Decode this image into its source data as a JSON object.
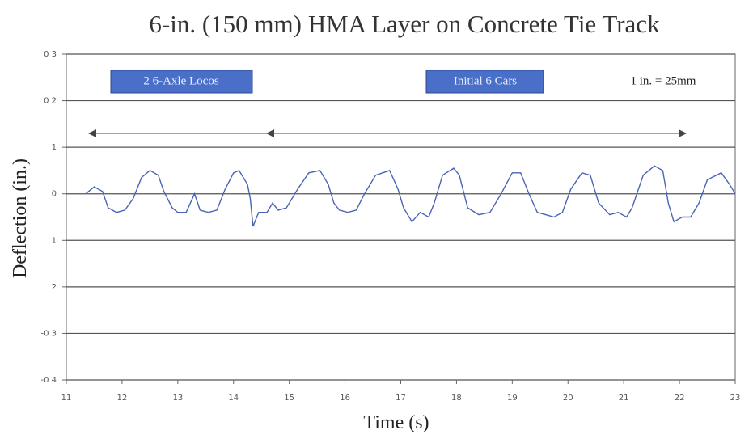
{
  "chart_data": {
    "type": "line",
    "title": "6-in. (150 mm) HMA Layer on Concrete Tie Track",
    "x_label": "Time (s)",
    "y_label": "Deflection (in.)",
    "annotations": [
      "2 6-Axle Locos",
      "Initial 6 Cars",
      "1 in. = 25mm"
    ],
    "xlim": [
      11,
      23
    ],
    "xticks": [
      11,
      12,
      13,
      14,
      15,
      16,
      17,
      18,
      19,
      20,
      21,
      22,
      23
    ],
    "ylim": [
      -0.4,
      0.3
    ],
    "yticks": [
      {
        "value": 0.3,
        "label": "0 3"
      },
      {
        "value": 0.2,
        "label": "0 2"
      },
      {
        "value": 0.1,
        "label": "1"
      },
      0,
      {
        "value": -0.1,
        "label": "1"
      },
      {
        "value": -0.2,
        "label": "2"
      },
      {
        "value": -0.3,
        "label": "-0 3"
      },
      {
        "value": -0.4,
        "label": "-0 4"
      }
    ],
    "grid": true,
    "series": [
      {
        "color": "#4a64b4",
        "x": [
          11.35,
          11.5,
          11.65,
          11.75,
          11.9,
          12.05,
          12.2,
          12.35,
          12.5,
          12.65,
          12.75,
          12.9,
          13.0,
          13.15,
          13.3,
          13.4,
          13.55,
          13.7,
          13.85,
          14.0,
          14.1,
          14.25,
          14.3,
          14.35,
          14.45,
          14.6,
          14.7,
          14.8,
          14.95,
          15.15,
          15.35,
          15.55,
          15.7,
          15.8,
          15.9,
          16.05,
          16.2,
          16.35,
          16.55,
          16.8,
          16.95,
          17.05,
          17.2,
          17.35,
          17.5,
          17.6,
          17.75,
          17.95,
          18.05,
          18.2,
          18.4,
          18.6,
          18.8,
          19.0,
          19.15,
          19.3,
          19.45,
          19.6,
          19.75,
          19.9,
          20.05,
          20.25,
          20.4,
          20.55,
          20.75,
          20.9,
          21.05,
          21.15,
          21.35,
          21.55,
          21.7,
          21.8,
          21.9,
          22.05,
          22.2,
          22.35,
          22.5,
          22.75,
          22.9,
          23.0
        ],
        "values": [
          0,
          0.015,
          0.005,
          -0.03,
          -0.04,
          -0.035,
          -0.01,
          0.035,
          0.05,
          0.04,
          0.005,
          -0.03,
          -0.04,
          -0.04,
          0.0,
          -0.035,
          -0.04,
          -0.035,
          0.01,
          0.045,
          0.05,
          0.02,
          -0.01,
          -0.07,
          -0.04,
          -0.04,
          -0.02,
          -0.035,
          -0.03,
          0.01,
          0.045,
          0.05,
          0.02,
          -0.02,
          -0.035,
          -0.04,
          -0.035,
          0.0,
          0.04,
          0.05,
          0.01,
          -0.03,
          -0.06,
          -0.04,
          -0.05,
          -0.02,
          0.04,
          0.055,
          0.04,
          -0.03,
          -0.045,
          -0.04,
          0.0,
          0.045,
          0.045,
          0.0,
          -0.04,
          -0.045,
          -0.05,
          -0.04,
          0.01,
          0.045,
          0.04,
          -0.02,
          -0.045,
          -0.04,
          -0.05,
          -0.03,
          0.04,
          0.06,
          0.05,
          -0.02,
          -0.06,
          -0.05,
          -0.05,
          -0.02,
          0.03,
          0.045,
          0.02,
          0.0
        ]
      }
    ]
  }
}
